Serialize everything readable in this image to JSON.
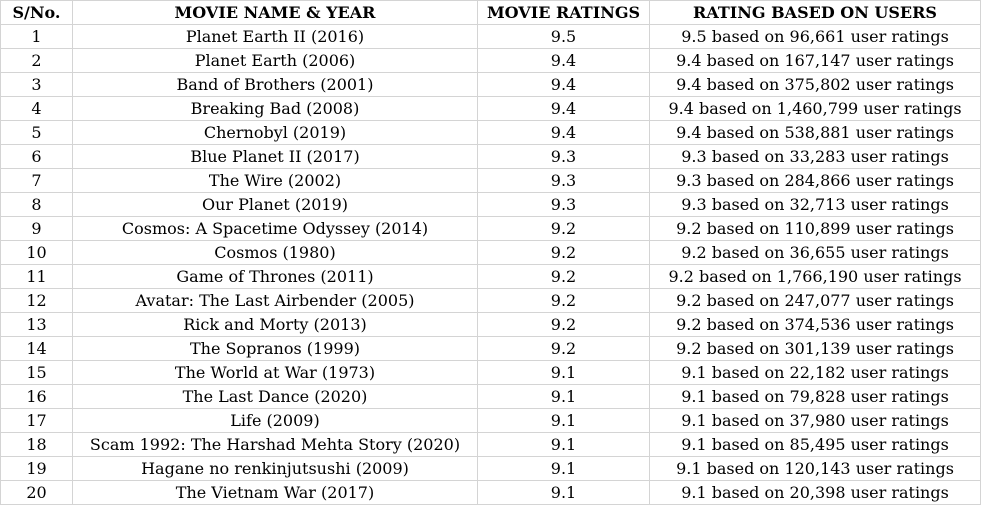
{
  "table": {
    "headers": [
      "S/No.",
      "MOVIE NAME & YEAR",
      "MOVIE RATINGS",
      "RATING BASED ON USERS"
    ],
    "rows": [
      {
        "sno": "1",
        "name": "Planet Earth II (2016)",
        "rating": "9.5",
        "users": "9.5 based on 96,661 user ratings"
      },
      {
        "sno": "2",
        "name": "Planet Earth (2006)",
        "rating": "9.4",
        "users": "9.4 based on 167,147 user ratings"
      },
      {
        "sno": "3",
        "name": "Band of Brothers (2001)",
        "rating": "9.4",
        "users": "9.4 based on 375,802 user ratings"
      },
      {
        "sno": "4",
        "name": "Breaking Bad (2008)",
        "rating": "9.4",
        "users": "9.4 based on 1,460,799 user ratings"
      },
      {
        "sno": "5",
        "name": "Chernobyl (2019)",
        "rating": "9.4",
        "users": "9.4 based on 538,881 user ratings"
      },
      {
        "sno": "6",
        "name": "Blue Planet II (2017)",
        "rating": "9.3",
        "users": "9.3 based on 33,283 user ratings"
      },
      {
        "sno": "7",
        "name": "The Wire (2002)",
        "rating": "9.3",
        "users": "9.3 based on 284,866 user ratings"
      },
      {
        "sno": "8",
        "name": "Our Planet (2019)",
        "rating": "9.3",
        "users": "9.3 based on 32,713 user ratings"
      },
      {
        "sno": "9",
        "name": "Cosmos: A Spacetime Odyssey (2014)",
        "rating": "9.2",
        "users": "9.2 based on 110,899 user ratings"
      },
      {
        "sno": "10",
        "name": "Cosmos (1980)",
        "rating": "9.2",
        "users": "9.2 based on 36,655 user ratings"
      },
      {
        "sno": "11",
        "name": "Game of Thrones (2011)",
        "rating": "9.2",
        "users": "9.2 based on 1,766,190 user ratings"
      },
      {
        "sno": "12",
        "name": "Avatar: The Last Airbender (2005)",
        "rating": "9.2",
        "users": "9.2 based on 247,077 user ratings"
      },
      {
        "sno": "13",
        "name": "Rick and Morty (2013)",
        "rating": "9.2",
        "users": "9.2 based on 374,536 user ratings"
      },
      {
        "sno": "14",
        "name": "The Sopranos (1999)",
        "rating": "9.2",
        "users": "9.2 based on 301,139 user ratings"
      },
      {
        "sno": "15",
        "name": "The World at War (1973)",
        "rating": "9.1",
        "users": "9.1 based on 22,182 user ratings"
      },
      {
        "sno": "16",
        "name": "The Last Dance (2020)",
        "rating": "9.1",
        "users": "9.1 based on 79,828 user ratings"
      },
      {
        "sno": "17",
        "name": "Life (2009)",
        "rating": "9.1",
        "users": "9.1 based on 37,980 user ratings"
      },
      {
        "sno": "18",
        "name": "Scam 1992: The Harshad Mehta Story (2020)",
        "rating": "9.1",
        "users": "9.1 based on 85,495 user ratings"
      },
      {
        "sno": "19",
        "name": "Hagane no renkinjutsushi (2009)",
        "rating": "9.1",
        "users": "9.1 based on 120,143 user ratings"
      },
      {
        "sno": "20",
        "name": "The Vietnam War (2017)",
        "rating": "9.1",
        "users": "9.1 based on 20,398 user ratings"
      }
    ]
  }
}
